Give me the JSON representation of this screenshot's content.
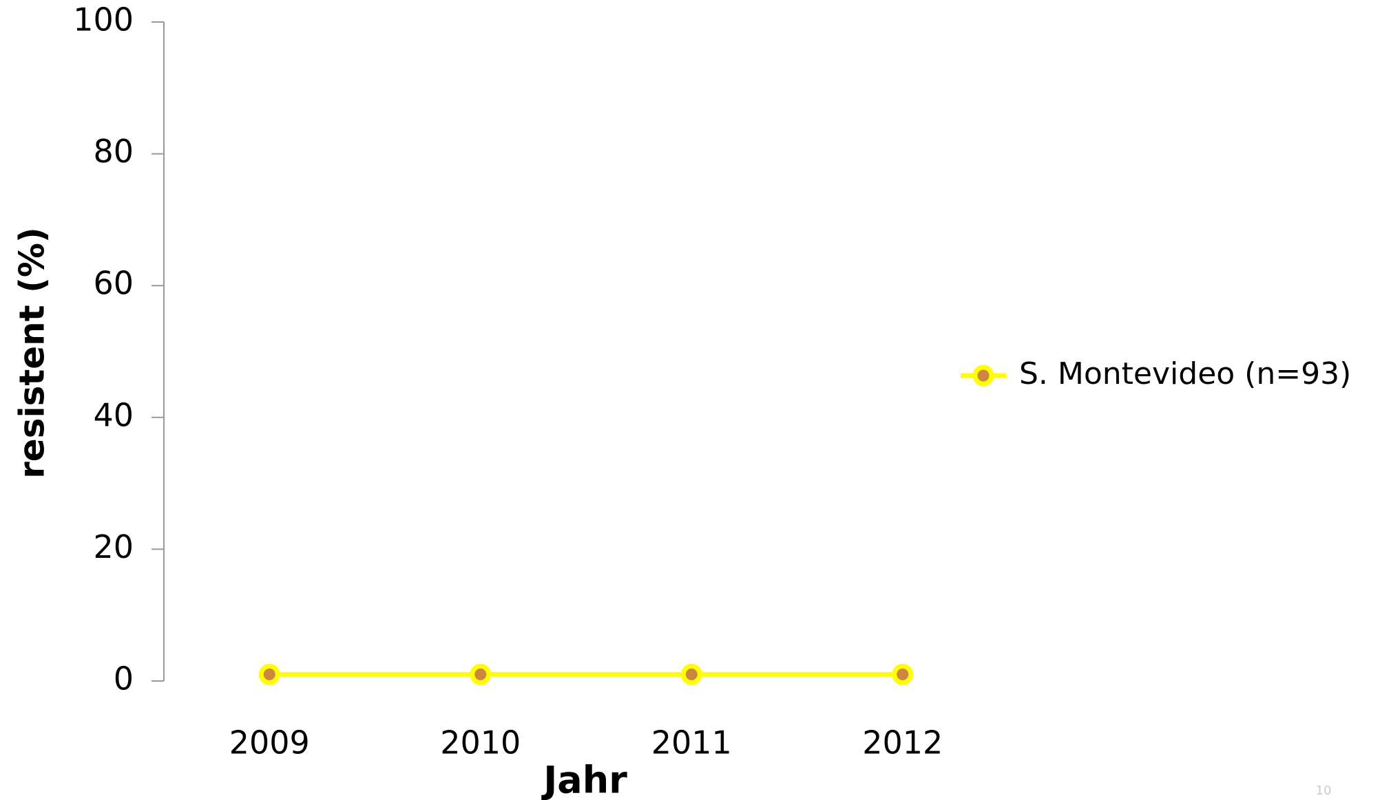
{
  "chart_data": {
    "type": "line",
    "categories": [
      "2009",
      "2010",
      "2011",
      "2012"
    ],
    "series": [
      {
        "name": "S. Montevideo (n=93)",
        "color": "#ffff00",
        "marker_color": "#cd853f",
        "values": [
          1,
          1,
          1,
          1
        ]
      }
    ],
    "ylim": [
      0,
      100
    ],
    "yticks": [
      0,
      20,
      40,
      60,
      80,
      100
    ],
    "xlabel": "Jahr",
    "ylabel": "resistent (%)",
    "legend": "right"
  },
  "page_number": "10"
}
